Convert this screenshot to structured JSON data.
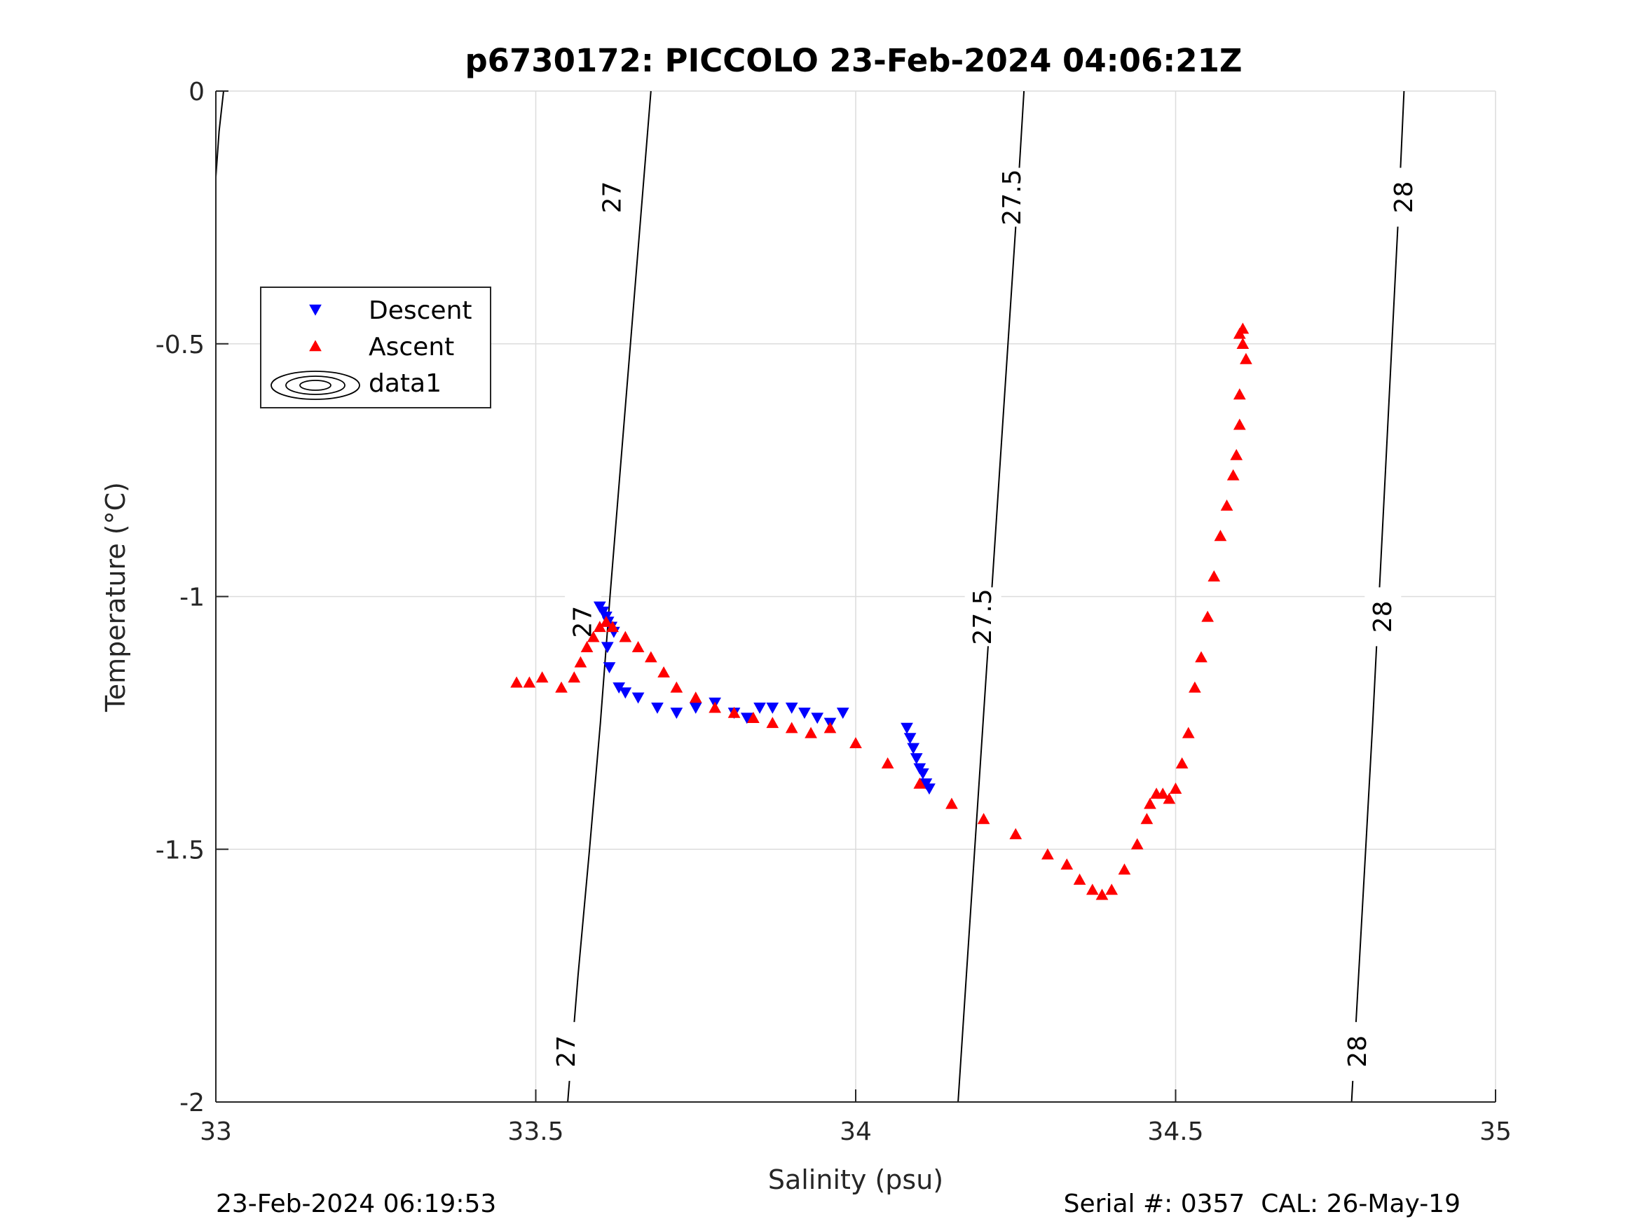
{
  "chart_data": {
    "type": "scatter",
    "title": "p6730172: PICCOLO 23-Feb-2024 04:06:21Z",
    "xlabel": "Salinity (psu)",
    "ylabel": "Temperature (°C)",
    "xlim": [
      33,
      35
    ],
    "ylim": [
      -2,
      0
    ],
    "xticks": [
      33,
      33.5,
      34,
      34.5,
      35
    ],
    "xtick_labels": [
      "33",
      "33.5",
      "34",
      "34.5",
      "35"
    ],
    "yticks": [
      -2,
      -1.5,
      -1,
      -0.5,
      0
    ],
    "ytick_labels": [
      "-2",
      "-1.5",
      "-1",
      "-0.5",
      "0"
    ],
    "grid": true,
    "legend": {
      "placement": "upper-left",
      "entries": [
        {
          "label": "Descent",
          "marker": "triangle-down",
          "color": "#0000ff"
        },
        {
          "label": "Ascent",
          "marker": "triangle-up",
          "color": "#ff0000"
        },
        {
          "label": "data1",
          "marker": "contour",
          "color": "#000000"
        }
      ]
    },
    "density_contours": [
      {
        "level": "27",
        "points": [
          [
            33.55,
            -2.0
          ],
          [
            33.566,
            -1.75
          ],
          [
            33.584,
            -1.5
          ],
          [
            33.601,
            -1.25
          ],
          [
            33.616,
            -1.0
          ],
          [
            33.632,
            -0.75
          ],
          [
            33.648,
            -0.5
          ],
          [
            33.664,
            -0.25
          ],
          [
            33.68,
            0.0
          ]
        ],
        "labels": [
          {
            "text": "27",
            "x": 33.548,
            "y": -1.9
          },
          {
            "text": "27",
            "x": 33.574,
            "y": -1.05
          },
          {
            "text": "27",
            "x": 33.62,
            "y": -0.21
          }
        ]
      },
      {
        "level": "27.5",
        "points": [
          [
            34.16,
            -2.0
          ],
          [
            34.173,
            -1.75
          ],
          [
            34.186,
            -1.5
          ],
          [
            34.199,
            -1.25
          ],
          [
            34.212,
            -1.0
          ],
          [
            34.225,
            -0.75
          ],
          [
            34.238,
            -0.5
          ],
          [
            34.251,
            -0.25
          ],
          [
            34.263,
            0.0
          ]
        ],
        "labels": [
          {
            "text": "27.5",
            "x": 34.199,
            "y": -1.04
          },
          {
            "text": "27.5",
            "x": 34.245,
            "y": -0.21
          }
        ]
      },
      {
        "level": "28",
        "points": [
          [
            34.775,
            -2.0
          ],
          [
            34.786,
            -1.75
          ],
          [
            34.797,
            -1.5
          ],
          [
            34.808,
            -1.25
          ],
          [
            34.818,
            -1.0
          ],
          [
            34.828,
            -0.75
          ],
          [
            34.838,
            -0.5
          ],
          [
            34.848,
            -0.25
          ],
          [
            34.857,
            0.0
          ]
        ],
        "labels": [
          {
            "text": "28",
            "x": 34.785,
            "y": -1.9
          },
          {
            "text": "28",
            "x": 34.824,
            "y": -1.04
          },
          {
            "text": "28",
            "x": 34.857,
            "y": -0.21
          }
        ]
      },
      {
        "level": "",
        "points": [
          [
            33.0,
            -0.17
          ],
          [
            33.005,
            -0.08
          ],
          [
            33.012,
            0.0
          ]
        ],
        "labels": []
      }
    ],
    "series": [
      {
        "name": "Descent",
        "marker": "triangle-down",
        "color": "#0000ff",
        "x": [
          33.6,
          33.605,
          33.61,
          33.613,
          33.618,
          33.622,
          33.612,
          33.615,
          33.63,
          33.64,
          33.66,
          33.69,
          33.72,
          33.75,
          33.78,
          33.81,
          33.83,
          33.85,
          33.87,
          33.9,
          33.92,
          33.94,
          33.96,
          33.98,
          34.08,
          34.085,
          34.09,
          34.095,
          34.1,
          34.105,
          34.11,
          34.115
        ],
        "y": [
          -1.02,
          -1.03,
          -1.04,
          -1.05,
          -1.06,
          -1.07,
          -1.1,
          -1.14,
          -1.18,
          -1.19,
          -1.2,
          -1.22,
          -1.23,
          -1.22,
          -1.21,
          -1.23,
          -1.24,
          -1.22,
          -1.22,
          -1.22,
          -1.23,
          -1.24,
          -1.25,
          -1.23,
          -1.26,
          -1.28,
          -1.3,
          -1.32,
          -1.34,
          -1.35,
          -1.37,
          -1.38
        ]
      },
      {
        "name": "Ascent",
        "marker": "triangle-up",
        "color": "#ff0000",
        "x": [
          33.47,
          33.49,
          33.51,
          33.54,
          33.56,
          33.57,
          33.58,
          33.59,
          33.6,
          33.61,
          33.62,
          33.64,
          33.66,
          33.68,
          33.7,
          33.72,
          33.75,
          33.78,
          33.81,
          33.84,
          33.87,
          33.9,
          33.93,
          33.96,
          34.0,
          34.05,
          34.1,
          34.15,
          34.2,
          34.25,
          34.3,
          34.33,
          34.35,
          34.37,
          34.385,
          34.4,
          34.42,
          34.44,
          34.455,
          34.46,
          34.47,
          34.48,
          34.49,
          34.5,
          34.51,
          34.52,
          34.53,
          34.54,
          34.55,
          34.56,
          34.57,
          34.58,
          34.59,
          34.595,
          34.6,
          34.6,
          34.61,
          34.605,
          34.6,
          34.605
        ],
        "y": [
          -1.17,
          -1.17,
          -1.16,
          -1.18,
          -1.16,
          -1.13,
          -1.1,
          -1.08,
          -1.06,
          -1.05,
          -1.06,
          -1.08,
          -1.1,
          -1.12,
          -1.15,
          -1.18,
          -1.2,
          -1.22,
          -1.23,
          -1.24,
          -1.25,
          -1.26,
          -1.27,
          -1.26,
          -1.29,
          -1.33,
          -1.37,
          -1.41,
          -1.44,
          -1.47,
          -1.51,
          -1.53,
          -1.56,
          -1.58,
          -1.59,
          -1.58,
          -1.54,
          -1.49,
          -1.44,
          -1.41,
          -1.39,
          -1.39,
          -1.4,
          -1.38,
          -1.33,
          -1.27,
          -1.18,
          -1.12,
          -1.04,
          -0.96,
          -0.88,
          -0.82,
          -0.76,
          -0.72,
          -0.66,
          -0.6,
          -0.53,
          -0.5,
          -0.48,
          -0.47
        ]
      }
    ]
  },
  "footer": {
    "timestamp": "23-Feb-2024 06:19:53",
    "serial_cal": "Serial #: 0357  CAL: 26-May-19"
  }
}
